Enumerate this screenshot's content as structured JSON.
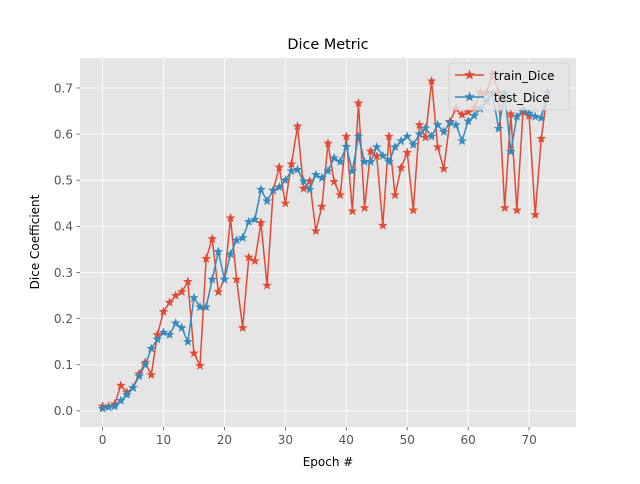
{
  "chart_data": {
    "type": "line",
    "title": "Dice Metric",
    "xlabel": "Epoch #",
    "ylabel": "Dice Coefficient",
    "xlim": [
      -3.7,
      77.7
    ],
    "ylim": [
      -0.035,
      0.765
    ],
    "x_ticks": [
      0,
      10,
      20,
      30,
      40,
      50,
      60,
      70
    ],
    "y_ticks": [
      0.0,
      0.1,
      0.2,
      0.3,
      0.4,
      0.5,
      0.6,
      0.7
    ],
    "y_tick_labels": [
      "0.0",
      "0.1",
      "0.2",
      "0.3",
      "0.4",
      "0.5",
      "0.6",
      "0.7"
    ],
    "grid": true,
    "legend_position": "top-right",
    "colors": {
      "background": "#e5e5e5",
      "grid": "#ffffff"
    },
    "series": [
      {
        "name": "train_Dice",
        "color": "#e24a33",
        "marker": "star",
        "values": [
          0.01,
          0.01,
          0.015,
          0.055,
          0.04,
          0.05,
          0.08,
          0.105,
          0.078,
          0.165,
          0.215,
          0.235,
          0.25,
          0.258,
          0.28,
          0.125,
          0.098,
          0.33,
          0.373,
          0.258,
          0.285,
          0.418,
          0.285,
          0.18,
          0.333,
          0.325,
          0.408,
          0.272,
          0.478,
          0.528,
          0.45,
          0.535,
          0.617,
          0.482,
          0.498,
          0.39,
          0.443,
          0.58,
          0.497,
          0.468,
          0.595,
          0.433,
          0.667,
          0.44,
          0.563,
          0.552,
          0.402,
          0.595,
          0.468,
          0.527,
          0.56,
          0.435,
          0.62,
          0.593,
          0.715,
          0.572,
          0.525,
          0.627,
          0.655,
          0.642,
          0.648,
          0.656,
          0.69,
          0.69,
          0.73,
          0.69,
          0.44,
          0.643,
          0.435,
          0.648,
          0.64,
          0.425,
          0.59,
          0.69
        ]
      },
      {
        "name": "test_Dice",
        "color": "#348abd",
        "marker": "star",
        "values": [
          0.005,
          0.008,
          0.01,
          0.022,
          0.035,
          0.05,
          0.075,
          0.1,
          0.135,
          0.155,
          0.17,
          0.165,
          0.19,
          0.18,
          0.15,
          0.245,
          0.225,
          0.225,
          0.285,
          0.345,
          0.285,
          0.34,
          0.37,
          0.375,
          0.41,
          0.415,
          0.48,
          0.455,
          0.478,
          0.485,
          0.5,
          0.52,
          0.523,
          0.498,
          0.48,
          0.512,
          0.505,
          0.52,
          0.548,
          0.54,
          0.573,
          0.52,
          0.595,
          0.54,
          0.54,
          0.572,
          0.553,
          0.54,
          0.572,
          0.585,
          0.595,
          0.577,
          0.6,
          0.613,
          0.595,
          0.62,
          0.605,
          0.625,
          0.62,
          0.585,
          0.628,
          0.64,
          0.655,
          0.672,
          0.688,
          0.612,
          0.688,
          0.562,
          0.638,
          0.652,
          0.645,
          0.638,
          0.635,
          0.69
        ]
      }
    ]
  }
}
